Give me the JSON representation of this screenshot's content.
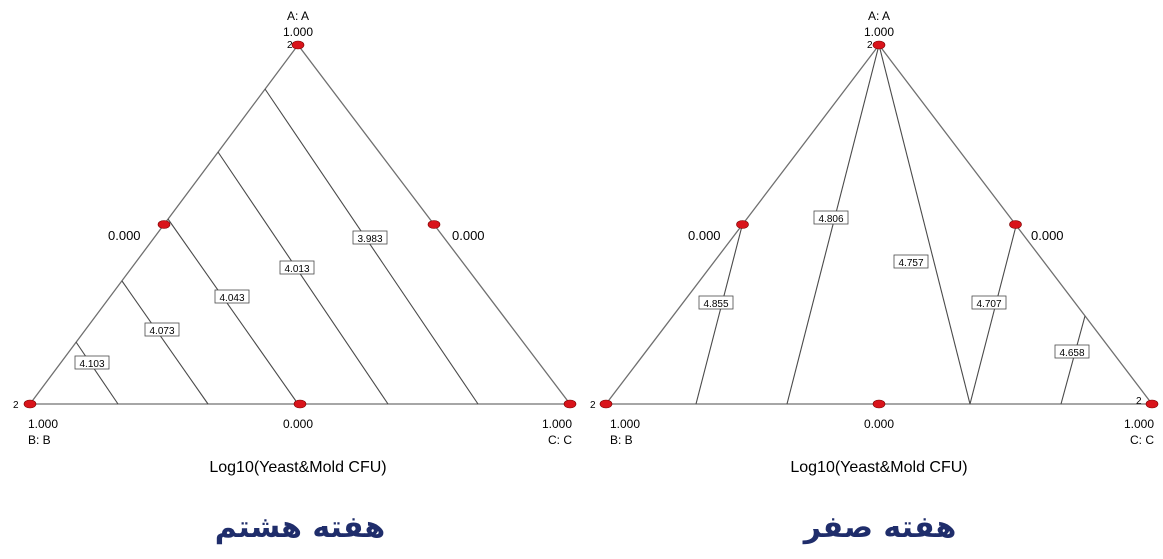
{
  "charts": [
    {
      "caption": "هفته هشتم",
      "vertex_a": {
        "axis_label": "A: A",
        "value": "1.000",
        "replicate": "2"
      },
      "vertex_b": {
        "axis_label": "B: B",
        "value": "1.000",
        "replicate": "2"
      },
      "vertex_c": {
        "axis_label": "C: C",
        "value": "1.000"
      },
      "mid_ab": {
        "value": "0.000"
      },
      "mid_ac": {
        "value": "0.000"
      },
      "mid_bc": {
        "value": "0.000"
      },
      "response_title": "Log10(Yeast&Mold CFU)",
      "point_color": "#d9141b"
    },
    {
      "caption": "هفته صفر",
      "vertex_a": {
        "axis_label": "A: A",
        "value": "1.000",
        "replicate": "2"
      },
      "vertex_b": {
        "axis_label": "B: B",
        "value": "1.000",
        "replicate": "2"
      },
      "vertex_c": {
        "axis_label": "C: C",
        "value": "1.000",
        "replicate": "2"
      },
      "mid_ab": {
        "value": "0.000"
      },
      "mid_ac": {
        "value": "0.000"
      },
      "mid_bc": {
        "value": "0.000"
      },
      "response_title": "Log10(Yeast&Mold CFU)",
      "point_color": "#d9141b"
    }
  ],
  "chart_data": [
    {
      "type": "contour",
      "chart_kind": "ternary mixture contour",
      "response": "Log10(Yeast&Mold CFU)",
      "components": [
        "A",
        "B",
        "C"
      ],
      "contour_levels": [
        "4.103",
        "4.073",
        "4.043",
        "4.013",
        "3.983"
      ],
      "design_points": [
        {
          "A": 1.0,
          "B": 0.0,
          "C": 0.0,
          "replicates": 2
        },
        {
          "A": 0.0,
          "B": 1.0,
          "C": 0.0,
          "replicates": 2
        },
        {
          "A": 0.0,
          "B": 0.0,
          "C": 1.0,
          "replicates": 1
        },
        {
          "A": 0.5,
          "B": 0.5,
          "C": 0.0,
          "replicates": 1
        },
        {
          "A": 0.5,
          "B": 0.0,
          "C": 0.5,
          "replicates": 1
        },
        {
          "A": 0.0,
          "B": 0.5,
          "C": 0.5,
          "replicates": 1
        }
      ]
    },
    {
      "type": "contour",
      "chart_kind": "ternary mixture contour",
      "response": "Log10(Yeast&Mold CFU)",
      "components": [
        "A",
        "B",
        "C"
      ],
      "contour_levels": [
        "4.855",
        "4.806",
        "4.757",
        "4.707",
        "4.658"
      ],
      "design_points": [
        {
          "A": 1.0,
          "B": 0.0,
          "C": 0.0,
          "replicates": 2
        },
        {
          "A": 0.0,
          "B": 1.0,
          "C": 0.0,
          "replicates": 2
        },
        {
          "A": 0.0,
          "B": 0.0,
          "C": 1.0,
          "replicates": 2
        },
        {
          "A": 0.5,
          "B": 0.5,
          "C": 0.0,
          "replicates": 1
        },
        {
          "A": 0.5,
          "B": 0.0,
          "C": 0.5,
          "replicates": 1
        },
        {
          "A": 0.0,
          "B": 0.5,
          "C": 0.5,
          "replicates": 1
        }
      ]
    }
  ]
}
